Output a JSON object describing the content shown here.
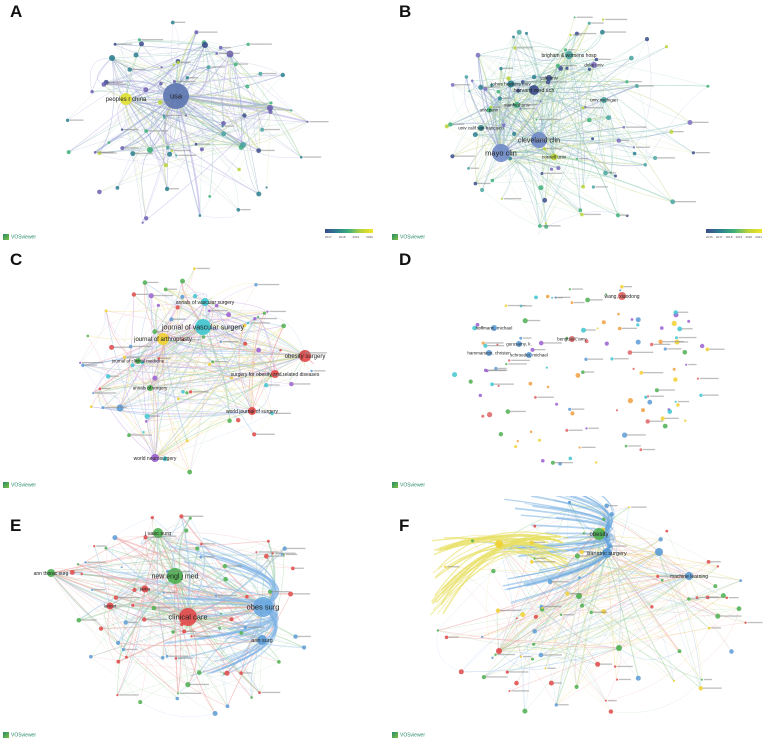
{
  "panels": [
    {
      "letter": "A",
      "vos_label": "VOSviewer",
      "labels": [
        "usa",
        "peoples r china"
      ],
      "colorbar": {
        "colors": [
          "#3b4c8c",
          "#2c7f8e",
          "#3fb07a",
          "#b9d33a",
          "#f2e52a"
        ],
        "ticks": [
          "2017",
          "2018",
          "2019",
          "2020"
        ]
      }
    },
    {
      "letter": "B",
      "vos_label": "VOSviewer",
      "labels": [
        "mayo clin",
        "cleveland clin",
        "harvard med sch",
        "brigham & womens hosp",
        "johns hopkins univ",
        "stanford univ",
        "cornell univ",
        "univ calif san francisco",
        "yale univ",
        "univ michigan",
        "univ penn",
        "duke univ"
      ],
      "colorbar": {
        "colors": [
          "#3b4c8c",
          "#2c7f8e",
          "#3fb07a",
          "#b9d33a",
          "#f2e52a"
        ],
        "ticks": [
          "2016",
          "2017",
          "2018",
          "2019",
          "2020",
          "2021"
        ]
      }
    },
    {
      "letter": "C",
      "vos_label": "VOSviewer",
      "labels": [
        "annals of vascular surgery",
        "journal of vascular surgery",
        "journal of arthroplasty",
        "obesity surgery",
        "surgery for obesity and related diseases",
        "world journal of surgery",
        "world neurosurgery",
        "journal of clinical medicine",
        "annals of surgery"
      ]
    },
    {
      "letter": "D",
      "vos_label": "VOSviewer",
      "labels": [
        "schroeder, michael",
        "hammarsten, christen",
        "gurusamy, k.",
        "bengtson, amy",
        "wang, xiaodong",
        "hoffmann, michael"
      ]
    },
    {
      "letter": "E",
      "vos_label": "VOSviewer",
      "labels": [
        "obes surg",
        "new engl j med",
        "j vasc surg",
        "ann thorac surg",
        "ann surg",
        "clinical care",
        "jama",
        "lancet"
      ]
    },
    {
      "letter": "F",
      "vos_label": "VOSviewer",
      "labels": [
        "obesity",
        "bariatric surgery",
        "machine learning"
      ]
    }
  ]
}
